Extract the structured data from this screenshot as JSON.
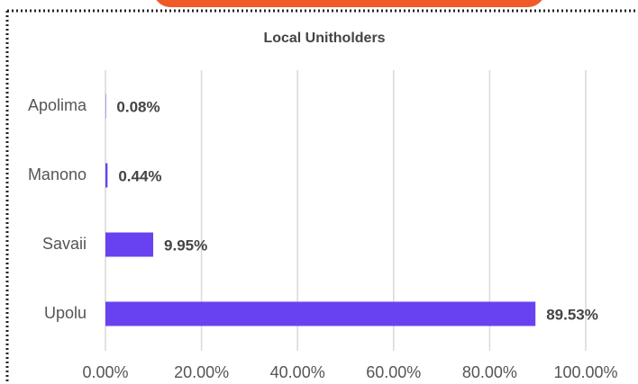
{
  "chart_data": {
    "type": "bar",
    "orientation": "horizontal",
    "title": "Local Unitholders",
    "categories": [
      "Apolima",
      "Manono",
      "Savaii",
      "Upolu"
    ],
    "values": [
      0.08,
      0.44,
      9.95,
      89.53
    ],
    "value_labels": [
      "0.08%",
      "0.44%",
      "9.95%",
      "89.53%"
    ],
    "color": "#6842f0",
    "xlim": [
      0,
      100
    ],
    "xticks": [
      {
        "value": 0,
        "label": "0.00%"
      },
      {
        "value": 20,
        "label": "20.00%"
      },
      {
        "value": 40,
        "label": "40.00%"
      },
      {
        "value": 60,
        "label": "60.00%"
      },
      {
        "value": 80,
        "label": "80.00%"
      },
      {
        "value": 100,
        "label": "100.00%"
      }
    ],
    "grid": true
  }
}
